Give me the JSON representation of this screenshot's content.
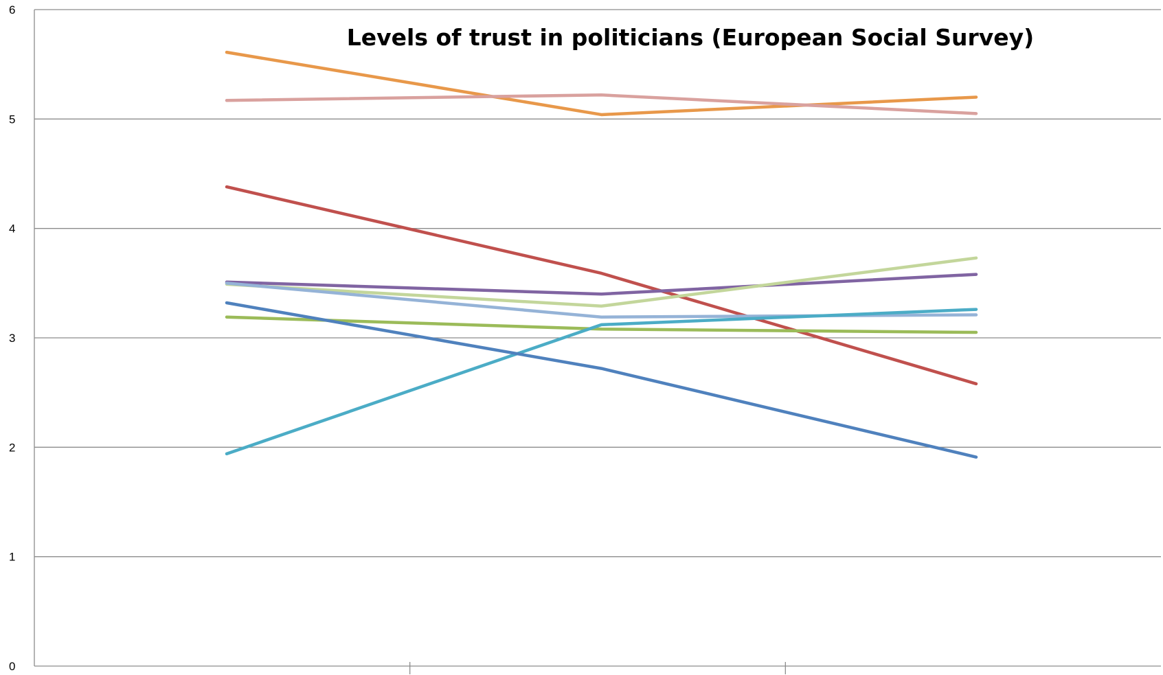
{
  "chart_data": {
    "type": "line",
    "title": "Levels of trust in politicians (European Social Survey)",
    "xlabel": "",
    "ylabel": "",
    "ylim": [
      0,
      6
    ],
    "yticks": [
      "0",
      "1",
      "2",
      "3",
      "4",
      "5",
      "6"
    ],
    "categories": [
      "",
      "",
      ""
    ],
    "grid": true,
    "legend": "none",
    "series": [
      {
        "color": "#e8984a",
        "values": [
          5.61,
          5.04,
          5.2
        ]
      },
      {
        "color": "#d9a19e",
        "values": [
          5.17,
          5.22,
          5.05
        ]
      },
      {
        "color": "#c0504d",
        "values": [
          4.38,
          3.59,
          2.58
        ]
      },
      {
        "color": "#8064a2",
        "values": [
          3.51,
          3.4,
          3.58
        ]
      },
      {
        "color": "#c3d69b",
        "values": [
          3.49,
          3.29,
          3.73
        ]
      },
      {
        "color": "#95b3d7",
        "values": [
          3.5,
          3.19,
          3.21
        ]
      },
      {
        "color": "#9bbb59",
        "values": [
          3.19,
          3.08,
          3.05
        ]
      },
      {
        "color": "#4bacc6",
        "values": [
          1.94,
          3.12,
          3.26
        ]
      },
      {
        "color": "#4f81bd",
        "values": [
          3.32,
          2.72,
          1.91
        ]
      }
    ]
  }
}
